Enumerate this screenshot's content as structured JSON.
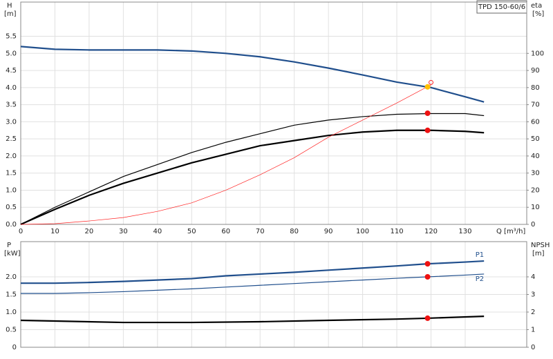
{
  "chart_data": [
    {
      "type": "line",
      "title": "TPD 150-60/6",
      "y_label": "H",
      "y_unit": "[m]",
      "y2_label": "eta",
      "y2_unit": "[%]",
      "x_label": "Q [m³/h]",
      "xlim": [
        0,
        148
      ],
      "xticks": [
        0,
        10,
        20,
        30,
        40,
        50,
        60,
        70,
        80,
        90,
        100,
        110,
        120,
        130
      ],
      "ylim": [
        0,
        6.5
      ],
      "yticks": [
        {
          "value": 0,
          "label": "0.0"
        },
        0.5,
        {
          "value": 1,
          "label": "1.0"
        },
        1.5,
        {
          "value": 2,
          "label": "2.0"
        },
        2.5,
        {
          "value": 3,
          "label": "3.0"
        },
        3.5,
        {
          "value": 4,
          "label": "4.0"
        },
        4.5,
        {
          "value": 5,
          "label": "5.0"
        },
        5.5
      ],
      "y2lim": [
        0,
        130
      ],
      "y2ticks": [
        0,
        10,
        20,
        30,
        40,
        50,
        60,
        70,
        80,
        90,
        100
      ],
      "grid": true,
      "series": [
        {
          "color": "#1f4e8c",
          "style": "thick",
          "axis": "y",
          "x": [
            0,
            10,
            20,
            30,
            40,
            50,
            60,
            70,
            80,
            90,
            100,
            110,
            120,
            130,
            135.5
          ],
          "values": [
            5.2,
            5.12,
            5.1,
            5.1,
            5.1,
            5.07,
            5.0,
            4.9,
            4.75,
            4.57,
            4.37,
            4.16,
            4.0,
            3.73,
            3.58
          ]
        },
        {
          "color": "#000000",
          "style": "thin",
          "axis": "y2",
          "x": [
            0,
            10,
            20,
            30,
            40,
            50,
            60,
            70,
            80,
            90,
            100,
            110,
            120,
            130,
            135.5
          ],
          "values": [
            0,
            10,
            19,
            28,
            35,
            42,
            48,
            53,
            58,
            61,
            63,
            64.4,
            64.8,
            64.8,
            63.6
          ]
        },
        {
          "color": "#000000",
          "style": "thick",
          "axis": "y2",
          "x": [
            0,
            10,
            20,
            30,
            40,
            50,
            60,
            70,
            80,
            90,
            100,
            110,
            120,
            130,
            135.5
          ],
          "values": [
            0,
            8.8,
            17,
            24,
            30,
            36,
            41,
            46,
            49,
            52,
            54,
            55,
            55,
            54.4,
            53.6
          ]
        },
        {
          "color": "#ff2020",
          "style": "hair",
          "axis": "y",
          "x": [
            0,
            10,
            20,
            30,
            40,
            50,
            60,
            70,
            80,
            90,
            100,
            110,
            120
          ],
          "values": [
            0,
            0.02,
            0.1,
            0.2,
            0.38,
            0.63,
            1.0,
            1.45,
            1.95,
            2.55,
            3.05,
            3.55,
            4.08
          ]
        },
        {
          "color": "#ffc000",
          "style": "dot",
          "axis": "y",
          "x": [
            119
          ],
          "values": [
            4.02
          ]
        },
        {
          "color": "#ff2020",
          "style": "ring",
          "axis": "y",
          "x": [
            120
          ],
          "values": [
            4.15
          ]
        },
        {
          "color": "#ee1111",
          "style": "dot",
          "axis": "y2",
          "x": [
            119
          ],
          "values": [
            65
          ]
        },
        {
          "color": "#ee1111",
          "style": "dot",
          "axis": "y2",
          "x": [
            119
          ],
          "values": [
            55
          ]
        }
      ]
    },
    {
      "type": "line",
      "y_label": "P",
      "y_unit": "[kW]",
      "y2_label": "NPSH",
      "y2_unit": "[m]",
      "xlim": [
        0,
        148
      ],
      "xticks": [
        0,
        10,
        20,
        30,
        40,
        50,
        60,
        70,
        80,
        90,
        100,
        110,
        120,
        130
      ],
      "ylim": [
        0,
        3
      ],
      "yticks": [
        0,
        0.5,
        {
          "value": 1,
          "label": "1.0"
        },
        1.5,
        {
          "value": 2,
          "label": "2.0"
        }
      ],
      "y2lim": [
        0,
        6
      ],
      "y2ticks": [
        0,
        1,
        2,
        3,
        4
      ],
      "grid": true,
      "series": [
        {
          "name": "P1",
          "label_pos": "above",
          "color": "#1f4e8c",
          "style": "thick",
          "axis": "y",
          "x": [
            0,
            10,
            20,
            30,
            40,
            50,
            60,
            70,
            80,
            90,
            100,
            110,
            119,
            130,
            135.5
          ],
          "values": [
            1.82,
            1.82,
            1.84,
            1.87,
            1.91,
            1.95,
            2.03,
            2.08,
            2.13,
            2.19,
            2.25,
            2.31,
            2.37,
            2.42,
            2.45
          ]
        },
        {
          "name": "P2",
          "label_pos": "below",
          "color": "#1f4e8c",
          "style": "thin",
          "axis": "y",
          "x": [
            0,
            10,
            20,
            30,
            40,
            50,
            60,
            70,
            80,
            90,
            100,
            110,
            119,
            130,
            135.5
          ],
          "values": [
            1.53,
            1.53,
            1.55,
            1.58,
            1.62,
            1.66,
            1.71,
            1.76,
            1.81,
            1.86,
            1.91,
            1.96,
            2.0,
            2.05,
            2.08
          ]
        },
        {
          "color": "#000000",
          "style": "thick",
          "axis": "y2",
          "x": [
            0,
            10,
            30,
            50,
            70,
            90,
            110,
            119,
            135.5
          ],
          "values": [
            1.53,
            1.49,
            1.41,
            1.41,
            1.45,
            1.53,
            1.6,
            1.65,
            1.76
          ]
        },
        {
          "color": "#ee1111",
          "style": "dot",
          "axis": "y",
          "x": [
            119
          ],
          "values": [
            2.37
          ]
        },
        {
          "color": "#ee1111",
          "style": "dot",
          "axis": "y",
          "x": [
            119
          ],
          "values": [
            2.0
          ]
        },
        {
          "color": "#ee1111",
          "style": "dot",
          "axis": "y2",
          "x": [
            119
          ],
          "values": [
            1.65
          ]
        }
      ]
    }
  ]
}
